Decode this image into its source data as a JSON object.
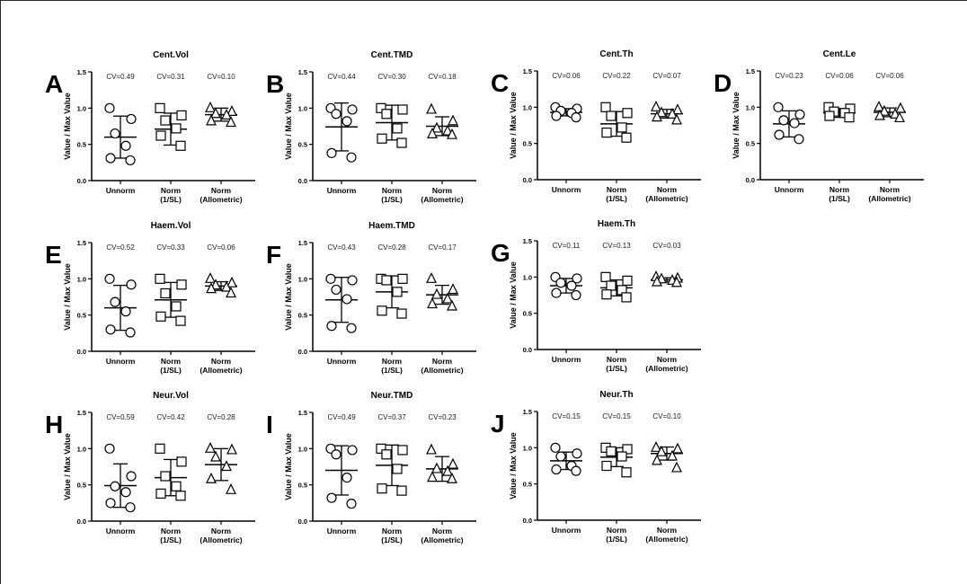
{
  "chart_data": [
    {
      "type": "scatter",
      "panel_letter": "A",
      "title": "Cent.Vol",
      "ylabel": "Value / Max Value",
      "ylim": [
        0,
        1.5
      ],
      "yticks": [
        "0.0",
        "0.5",
        "1.0",
        "1.5"
      ],
      "categories": [
        "Unnorm",
        "Norm\n(1/SL)",
        "Norm\n(Allometric)"
      ],
      "cv": [
        "CV=0.49",
        "CV=0.31",
        "CV=0.10"
      ],
      "groups": [
        {
          "marker": "circle",
          "mean": 0.6,
          "sd": 0.29,
          "values": [
            1.0,
            0.85,
            0.65,
            0.48,
            0.31,
            0.28
          ]
        },
        {
          "marker": "square",
          "mean": 0.71,
          "sd": 0.22,
          "values": [
            1.0,
            0.9,
            0.83,
            0.72,
            0.62,
            0.48
          ]
        },
        {
          "marker": "triangle",
          "mean": 0.91,
          "sd": 0.09,
          "values": [
            1.0,
            0.95,
            0.92,
            0.9,
            0.82,
            0.8
          ]
        }
      ]
    },
    {
      "type": "scatter",
      "panel_letter": "B",
      "title": "Cent.TMD",
      "ylabel": "Value / Max Value",
      "ylim": [
        0,
        1.5
      ],
      "yticks": [
        "0.0",
        "0.5",
        "1.0",
        "1.5"
      ],
      "categories": [
        "Unnorm",
        "Norm\n(1/SL)",
        "Norm\n(Allometric)"
      ],
      "cv": [
        "CV=0.44",
        "CV=0.30",
        "CV=0.18"
      ],
      "groups": [
        {
          "marker": "circle",
          "mean": 0.74,
          "sd": 0.33,
          "values": [
            1.0,
            0.98,
            0.92,
            0.82,
            0.38,
            0.32
          ]
        },
        {
          "marker": "square",
          "mean": 0.8,
          "sd": 0.24,
          "values": [
            1.0,
            0.98,
            0.92,
            0.72,
            0.58,
            0.52
          ]
        },
        {
          "marker": "triangle",
          "mean": 0.75,
          "sd": 0.13,
          "values": [
            0.98,
            0.82,
            0.72,
            0.68,
            0.64,
            0.63
          ]
        }
      ]
    },
    {
      "type": "scatter",
      "panel_letter": "C",
      "title": "Cent.Th",
      "ylabel": "Value / Max Value",
      "ylim": [
        0,
        1.5
      ],
      "yticks": [
        "0.0",
        "0.5",
        "1.0",
        "1.5"
      ],
      "categories": [
        "Unnorm",
        "Norm\n(1/SL)",
        "Norm\n(Allometric)"
      ],
      "cv": [
        "CV=0.06",
        "CV=0.22",
        "CV=0.07"
      ],
      "groups": [
        {
          "marker": "circle",
          "mean": 0.93,
          "sd": 0.05,
          "values": [
            1.0,
            0.98,
            0.95,
            0.92,
            0.88,
            0.86
          ]
        },
        {
          "marker": "square",
          "mean": 0.77,
          "sd": 0.17,
          "values": [
            1.0,
            0.92,
            0.88,
            0.72,
            0.65,
            0.58
          ]
        },
        {
          "marker": "triangle",
          "mean": 0.91,
          "sd": 0.06,
          "values": [
            1.0,
            0.96,
            0.92,
            0.9,
            0.86,
            0.82
          ]
        }
      ]
    },
    {
      "type": "scatter",
      "panel_letter": "D",
      "title": "Cent.Le",
      "ylabel": "Value / Max Value",
      "ylim": [
        0,
        1.5
      ],
      "yticks": [
        "0.0",
        "0.5",
        "1.0",
        "1.5"
      ],
      "categories": [
        "Unnorm",
        "Norm\n(1/SL)",
        "Norm\n(Allometric)"
      ],
      "cv": [
        "CV=0.23",
        "CV=0.06",
        "CV=0.06"
      ],
      "groups": [
        {
          "marker": "circle",
          "mean": 0.77,
          "sd": 0.18,
          "values": [
            1.0,
            0.9,
            0.82,
            0.78,
            0.62,
            0.56
          ]
        },
        {
          "marker": "square",
          "mean": 0.92,
          "sd": 0.06,
          "values": [
            1.0,
            0.98,
            0.94,
            0.92,
            0.88,
            0.86
          ]
        },
        {
          "marker": "triangle",
          "mean": 0.93,
          "sd": 0.06,
          "values": [
            1.0,
            0.98,
            0.94,
            0.9,
            0.88,
            0.85
          ]
        }
      ]
    },
    {
      "type": "scatter",
      "panel_letter": "E",
      "title": "Haem.Vol",
      "ylabel": "Value / Max Value",
      "ylim": [
        0,
        1.5
      ],
      "yticks": [
        "0.0",
        "0.5",
        "1.0",
        "1.5"
      ],
      "categories": [
        "Unnorm",
        "Norm\n(1/SL)",
        "Norm\n(Allometric)"
      ],
      "cv": [
        "CV=0.52",
        "CV=0.33",
        "CV=0.06"
      ],
      "groups": [
        {
          "marker": "circle",
          "mean": 0.6,
          "sd": 0.31,
          "values": [
            1.0,
            0.92,
            0.68,
            0.55,
            0.3,
            0.26
          ]
        },
        {
          "marker": "square",
          "mean": 0.71,
          "sd": 0.24,
          "values": [
            1.0,
            0.92,
            0.8,
            0.62,
            0.48,
            0.42
          ]
        },
        {
          "marker": "triangle",
          "mean": 0.9,
          "sd": 0.06,
          "values": [
            1.0,
            0.94,
            0.91,
            0.88,
            0.86,
            0.8
          ]
        }
      ]
    },
    {
      "type": "scatter",
      "panel_letter": "F",
      "title": "Haem.TMD",
      "ylabel": "Value / Max Value",
      "ylim": [
        0,
        1.5
      ],
      "yticks": [
        "0.0",
        "0.5",
        "1.0",
        "1.5"
      ],
      "categories": [
        "Unnorm",
        "Norm\n(1/SL)",
        "Norm\n(Allometric)"
      ],
      "cv": [
        "CV=0.43",
        "CV=0.28",
        "CV=0.17"
      ],
      "groups": [
        {
          "marker": "circle",
          "mean": 0.71,
          "sd": 0.31,
          "values": [
            1.0,
            0.98,
            0.85,
            0.72,
            0.35,
            0.32
          ]
        },
        {
          "marker": "square",
          "mean": 0.82,
          "sd": 0.22,
          "values": [
            1.0,
            1.0,
            0.98,
            0.82,
            0.56,
            0.52
          ]
        },
        {
          "marker": "triangle",
          "mean": 0.78,
          "sd": 0.13,
          "values": [
            1.0,
            0.85,
            0.78,
            0.72,
            0.65,
            0.62
          ]
        }
      ]
    },
    {
      "type": "scatter",
      "panel_letter": "G",
      "title": "Haem.Th",
      "ylabel": "Value / Max Value",
      "ylim": [
        0,
        1.5
      ],
      "yticks": [
        "0.0",
        "0.5",
        "1.0",
        "1.5"
      ],
      "categories": [
        "Unnorm",
        "Norm\n(1/SL)",
        "Norm\n(Allometric)"
      ],
      "cv": [
        "CV=0.11",
        "CV=0.13",
        "CV=0.03"
      ],
      "groups": [
        {
          "marker": "circle",
          "mean": 0.88,
          "sd": 0.1,
          "values": [
            1.0,
            0.98,
            0.92,
            0.88,
            0.78,
            0.75
          ]
        },
        {
          "marker": "square",
          "mean": 0.85,
          "sd": 0.11,
          "values": [
            1.0,
            0.95,
            0.88,
            0.82,
            0.76,
            0.72
          ]
        },
        {
          "marker": "triangle",
          "mean": 0.96,
          "sd": 0.03,
          "values": [
            1.0,
            0.98,
            0.97,
            0.95,
            0.93,
            0.92
          ]
        }
      ]
    },
    {
      "type": "scatter",
      "panel_letter": "H",
      "title": "Neur.Vol",
      "ylabel": "Value / Max Value",
      "ylim": [
        0,
        1.5
      ],
      "yticks": [
        "0.0",
        "0.5",
        "1.0",
        "1.5"
      ],
      "categories": [
        "Unnorm",
        "Norm\n(1/SL)",
        "Norm\n(Allometric)"
      ],
      "cv": [
        "CV=0.59",
        "CV=0.42",
        "CV=0.28"
      ],
      "groups": [
        {
          "marker": "circle",
          "mean": 0.49,
          "sd": 0.3,
          "values": [
            1.0,
            0.62,
            0.48,
            0.4,
            0.25,
            0.19
          ]
        },
        {
          "marker": "square",
          "mean": 0.6,
          "sd": 0.25,
          "values": [
            1.0,
            0.82,
            0.62,
            0.48,
            0.38,
            0.35
          ]
        },
        {
          "marker": "triangle",
          "mean": 0.78,
          "sd": 0.22,
          "values": [
            1.0,
            0.98,
            0.88,
            0.75,
            0.58,
            0.43
          ]
        }
      ]
    },
    {
      "type": "scatter",
      "panel_letter": "I",
      "title": "Neur.TMD",
      "ylabel": "Value / Max Value",
      "ylim": [
        0,
        1.5
      ],
      "yticks": [
        "0.0",
        "0.5",
        "1.0",
        "1.5"
      ],
      "categories": [
        "Unnorm",
        "Norm\n(1/SL)",
        "Norm\n(Allometric)"
      ],
      "cv": [
        "CV=0.49",
        "CV=0.37",
        "CV=0.23"
      ],
      "groups": [
        {
          "marker": "circle",
          "mean": 0.7,
          "sd": 0.34,
          "values": [
            1.0,
            0.98,
            0.92,
            0.6,
            0.32,
            0.24
          ]
        },
        {
          "marker": "square",
          "mean": 0.77,
          "sd": 0.28,
          "values": [
            1.0,
            0.98,
            0.92,
            0.72,
            0.45,
            0.42
          ]
        },
        {
          "marker": "triangle",
          "mean": 0.72,
          "sd": 0.17,
          "values": [
            0.98,
            0.78,
            0.72,
            0.68,
            0.6,
            0.58
          ]
        }
      ]
    },
    {
      "type": "scatter",
      "panel_letter": "J",
      "title": "Neur.Th",
      "ylabel": "Value / Max Value",
      "ylim": [
        0,
        1.5
      ],
      "yticks": [
        "0.0",
        "0.5",
        "1.0",
        "1.5"
      ],
      "categories": [
        "Unnorm",
        "Norm\n(1/SL)",
        "Norm\n(Allometric)"
      ],
      "cv": [
        "CV=0.15",
        "CV=0.15",
        "CV=0.10"
      ],
      "groups": [
        {
          "marker": "circle",
          "mean": 0.82,
          "sd": 0.12,
          "values": [
            1.0,
            0.92,
            0.88,
            0.75,
            0.7,
            0.68
          ]
        },
        {
          "marker": "square",
          "mean": 0.87,
          "sd": 0.13,
          "values": [
            1.0,
            0.98,
            0.95,
            0.88,
            0.75,
            0.66
          ]
        },
        {
          "marker": "triangle",
          "mean": 0.92,
          "sd": 0.09,
          "values": [
            1.0,
            0.98,
            0.94,
            0.88,
            0.82,
            0.72
          ]
        }
      ]
    }
  ]
}
